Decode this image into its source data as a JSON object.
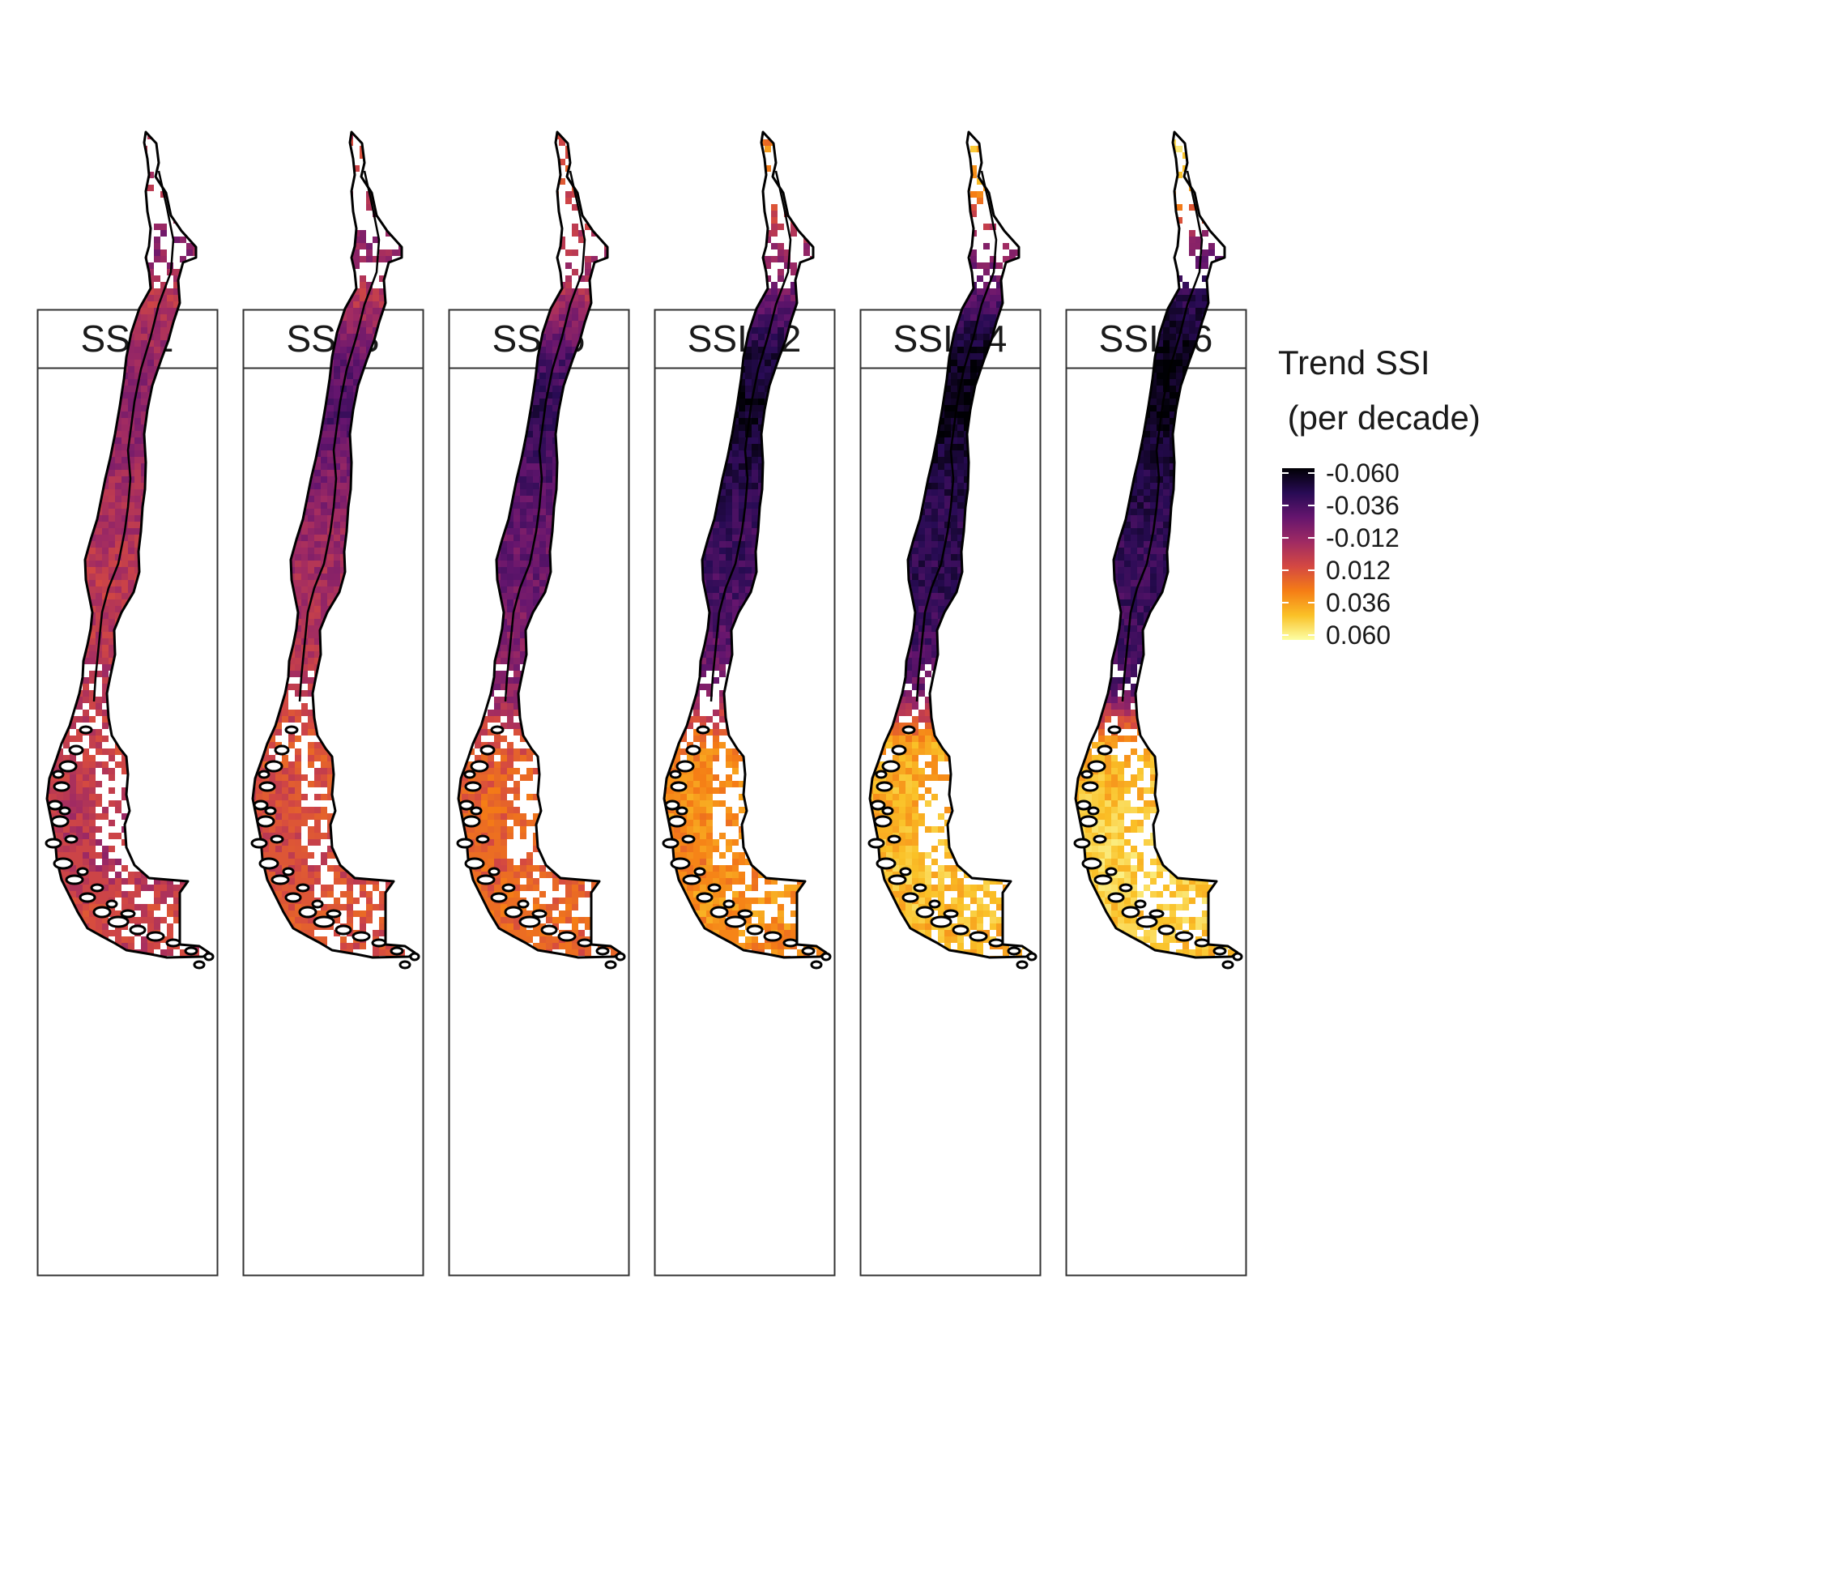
{
  "panels": [
    {
      "label": "SSI-1",
      "profile": [
        0.55,
        0.5,
        0.35,
        0.5,
        0.4,
        0.35,
        0.42,
        0.46,
        0.5,
        0.5,
        0.48,
        0.54,
        0.5,
        0.45,
        0.55,
        0.5
      ]
    },
    {
      "label": "SSI-3",
      "profile": [
        0.55,
        0.5,
        0.38,
        0.5,
        0.3,
        0.22,
        0.33,
        0.4,
        0.44,
        0.48,
        0.5,
        0.6,
        0.58,
        0.55,
        0.6,
        0.55
      ]
    },
    {
      "label": "SSI-6",
      "profile": [
        0.62,
        0.6,
        0.45,
        0.45,
        0.25,
        0.15,
        0.22,
        0.28,
        0.3,
        0.35,
        0.38,
        0.6,
        0.65,
        0.62,
        0.66,
        0.6
      ]
    },
    {
      "label": "SSI-12",
      "profile": [
        0.72,
        0.7,
        0.45,
        0.3,
        0.1,
        0.05,
        0.12,
        0.18,
        0.2,
        0.25,
        0.35,
        0.72,
        0.75,
        0.72,
        0.76,
        0.7
      ]
    },
    {
      "label": "SSI-24",
      "profile": [
        0.85,
        0.8,
        0.4,
        0.25,
        0.05,
        0.02,
        0.1,
        0.15,
        0.15,
        0.2,
        0.3,
        0.8,
        0.82,
        0.85,
        0.85,
        0.8
      ]
    },
    {
      "label": "SSI-36",
      "profile": [
        0.92,
        0.88,
        0.35,
        0.15,
        0.03,
        0.02,
        0.1,
        0.15,
        0.18,
        0.2,
        0.25,
        0.82,
        0.85,
        0.9,
        0.88,
        0.85
      ]
    }
  ],
  "legend": {
    "title_line1": "Trend SSI",
    "title_line2": " (per decade)",
    "ticks": [
      "-0.060",
      "-0.036",
      "-0.012",
      "0.012",
      "0.036",
      "0.060"
    ],
    "colors": [
      "#000004",
      "#280b54",
      "#65156e",
      "#9f2a63",
      "#d44842",
      "#f57d15",
      "#fac127",
      "#fcffa4"
    ]
  },
  "colors": {
    "outline": "#000000",
    "panel_border": "#333333",
    "strip_fill": "#ffffff"
  }
}
